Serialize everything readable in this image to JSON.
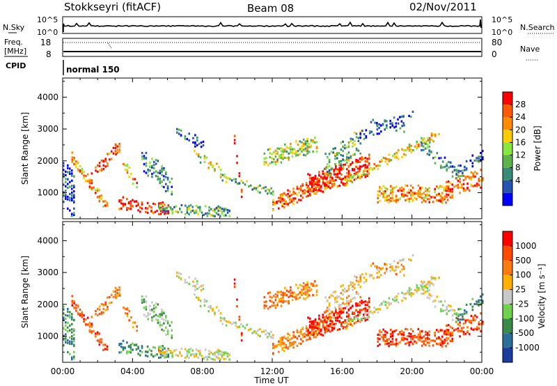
{
  "header": {
    "station": "Stokkseyri (fitACF)",
    "beam": "Beam 08",
    "date": "02/Nov/2011"
  },
  "nsky_panel": {
    "left_label": "N.Sky",
    "right_label": "N.Search",
    "left_ticks": [
      "10^5",
      "10^0"
    ],
    "right_ticks": [
      "10^5",
      "10^0"
    ]
  },
  "freq_panel": {
    "left_label_1": "Freq.",
    "left_label_2": "[MHz]",
    "right_label": "Nave",
    "left_ticks": [
      "18",
      "8"
    ],
    "right_ticks": [
      "80",
      "0"
    ]
  },
  "cpid_panel": {
    "label": "CPID",
    "program": "normal 150"
  },
  "chart_data": [
    {
      "type": "heatmap",
      "name": "power",
      "ylabel": "Slant Range [km]",
      "ylim": [
        180,
        4600
      ],
      "yticks": [
        "1000",
        "2000",
        "3000",
        "4000"
      ],
      "yticks_values": [
        1000,
        2000,
        3000,
        4000
      ],
      "colorbar_label": "Power [dB]",
      "colorbar_ticks": [
        "28",
        "24",
        "20",
        "16",
        "12",
        "8",
        "4"
      ],
      "colors": [
        "#0000ff",
        "#2555b0",
        "#3a8a78",
        "#5db34a",
        "#88e640",
        "#ffcc00",
        "#ff8c00",
        "#ff5a00",
        "#ff0000"
      ]
    },
    {
      "type": "heatmap",
      "name": "velocity",
      "ylabel": "Slant Range [km]",
      "ylim": [
        180,
        4600
      ],
      "yticks": [
        "1000",
        "2000",
        "3000",
        "4000"
      ],
      "yticks_values": [
        1000,
        2000,
        3000,
        4000
      ],
      "colorbar_label": "Velocity [m s⁻¹]",
      "colorbar_ticks": [
        "1000",
        "500",
        "100",
        "25",
        "-25",
        "-100",
        "-500",
        "-1000"
      ],
      "colors": [
        "#1c3c9e",
        "#2d6e9a",
        "#3a8a4a",
        "#6fd24e",
        "#c8c8c8",
        "#ffb000",
        "#ff7a10",
        "#ff4a00",
        "#ff0000"
      ]
    }
  ],
  "xaxis": {
    "label": "Time UT",
    "ticks": [
      "00:00",
      "04:00",
      "08:00",
      "12:00",
      "16:00",
      "20:00",
      "00:00"
    ],
    "range_hours": [
      0,
      24
    ]
  }
}
